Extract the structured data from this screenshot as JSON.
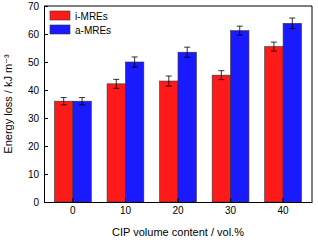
{
  "chart_data": {
    "type": "bar",
    "categories": [
      "0",
      "10",
      "20",
      "30",
      "40"
    ],
    "series": [
      {
        "name": "i-MREs",
        "color": "#ff1a1a",
        "values": [
          36,
          42.2,
          43.2,
          45.3,
          55.5
        ],
        "errors": [
          1.3,
          1.6,
          1.8,
          1.6,
          1.6
        ]
      },
      {
        "name": "a-MREs",
        "color": "#1a1aff",
        "values": [
          36,
          50,
          53.5,
          61.2,
          63.8
        ],
        "errors": [
          1.3,
          1.8,
          1.8,
          1.6,
          1.9
        ]
      }
    ],
    "x_label": "CIP volume content / vol.%",
    "y_label": "Energy loss / kJ m⁻³",
    "ylim": [
      0,
      70
    ],
    "yticks": [
      0,
      10,
      20,
      30,
      40,
      50,
      60,
      70
    ],
    "legend": "upper left"
  }
}
